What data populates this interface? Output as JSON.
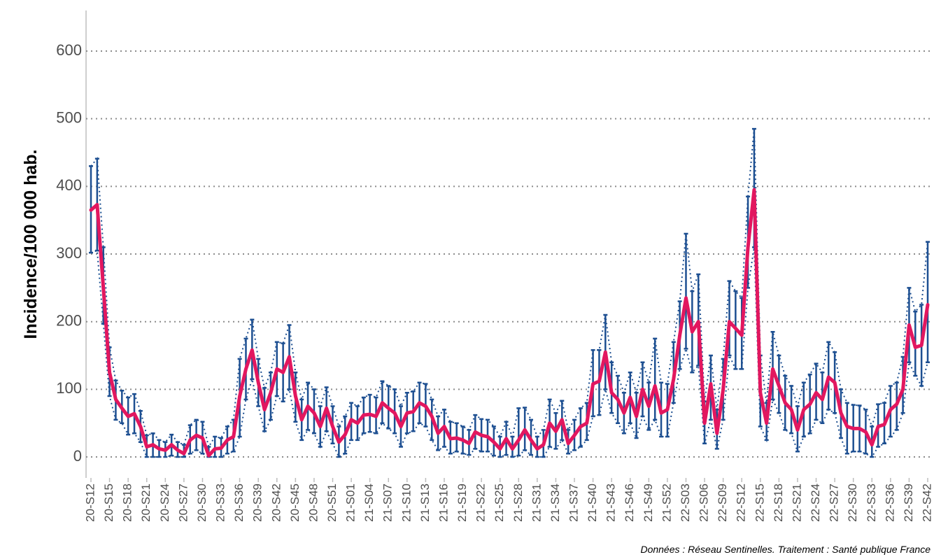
{
  "chart_data": {
    "type": "line-errorbar",
    "y_label": "Incidence/100 000 hab.",
    "note": "Données : Réseau Sentinelles. Traitement : Santé publique France",
    "line_color": "#e2175f",
    "ci_color": "#1d4f91",
    "grid": true,
    "ylim": [
      -31,
      660
    ],
    "yticks": [
      0,
      100,
      200,
      300,
      400,
      500,
      600
    ],
    "categories": [
      "20-S12",
      null,
      null,
      "20-S15",
      null,
      null,
      "20-S18",
      null,
      null,
      "20-S21",
      null,
      null,
      "20-S24",
      null,
      null,
      "20-S27",
      null,
      null,
      "20-S30",
      null,
      null,
      "20-S33",
      null,
      null,
      "20-S36",
      null,
      null,
      "20-S39",
      null,
      null,
      "20-S42",
      null,
      null,
      "20-S45",
      null,
      null,
      "20-S48",
      null,
      null,
      "20-S51",
      null,
      null,
      "21-S01",
      null,
      null,
      "21-S04",
      null,
      null,
      "21-S07",
      null,
      null,
      "21-S10",
      null,
      null,
      "21-S13",
      null,
      null,
      "21-S16",
      null,
      null,
      "21-S19",
      null,
      null,
      "21-S22",
      null,
      null,
      "21-S25",
      null,
      null,
      "21-S28",
      null,
      null,
      "21-S31",
      null,
      null,
      "21-S34",
      null,
      null,
      "21-S37",
      null,
      null,
      "21-S40",
      null,
      null,
      "21-S43",
      null,
      null,
      "21-S46",
      null,
      null,
      "21-S49",
      null,
      null,
      "21-S52",
      null,
      null,
      "22-S03",
      null,
      null,
      "22-S06",
      null,
      null,
      "22-S09",
      null,
      null,
      "22-S12",
      null,
      null,
      "22-S15",
      null,
      null,
      "22-S18",
      null,
      null,
      "22-S21",
      null,
      null,
      "22-S24",
      null,
      null,
      "22-S27",
      null,
      null,
      "22-S30",
      null,
      null,
      "22-S33",
      null,
      null,
      "22-S36",
      null,
      null,
      "22-S39",
      null,
      null,
      "22-S42"
    ],
    "values": [
      365,
      373,
      250,
      125,
      85,
      72,
      60,
      64,
      45,
      15,
      18,
      12,
      10,
      18,
      10,
      5,
      25,
      32,
      28,
      2,
      12,
      13,
      25,
      30,
      90,
      130,
      158,
      110,
      70,
      95,
      130,
      125,
      148,
      90,
      55,
      75,
      65,
      45,
      72,
      45,
      22,
      33,
      55,
      50,
      62,
      63,
      60,
      80,
      72,
      65,
      45,
      65,
      67,
      80,
      75,
      60,
      35,
      45,
      27,
      28,
      25,
      20,
      37,
      32,
      30,
      22,
      12,
      27,
      12,
      25,
      40,
      25,
      12,
      18,
      50,
      38,
      55,
      20,
      32,
      45,
      50,
      108,
      112,
      155,
      95,
      85,
      65,
      88,
      60,
      100,
      75,
      105,
      65,
      70,
      115,
      180,
      235,
      185,
      200,
      50,
      108,
      35,
      100,
      200,
      190,
      180,
      310,
      395,
      95,
      50,
      130,
      105,
      80,
      70,
      40,
      70,
      78,
      95,
      85,
      118,
      110,
      65,
      45,
      42,
      42,
      37,
      18,
      45,
      48,
      70,
      78,
      100,
      195,
      162,
      165,
      225
    ],
    "ci_lower": [
      302,
      305,
      197,
      90,
      55,
      50,
      33,
      35,
      22,
      0,
      0,
      0,
      0,
      2,
      0,
      0,
      5,
      10,
      5,
      0,
      0,
      0,
      5,
      8,
      30,
      85,
      115,
      75,
      38,
      55,
      90,
      82,
      100,
      52,
      25,
      40,
      35,
      15,
      38,
      20,
      0,
      5,
      25,
      25,
      35,
      37,
      35,
      50,
      42,
      35,
      15,
      35,
      38,
      50,
      45,
      25,
      10,
      15,
      5,
      8,
      5,
      3,
      12,
      8,
      8,
      2,
      0,
      3,
      0,
      2,
      10,
      3,
      0,
      0,
      15,
      12,
      25,
      5,
      10,
      15,
      25,
      60,
      62,
      100,
      65,
      50,
      35,
      50,
      28,
      60,
      40,
      55,
      30,
      30,
      80,
      130,
      160,
      125,
      135,
      20,
      55,
      12,
      55,
      150,
      130,
      130,
      250,
      310,
      45,
      25,
      85,
      65,
      40,
      35,
      8,
      30,
      35,
      55,
      50,
      70,
      65,
      28,
      5,
      8,
      8,
      5,
      0,
      15,
      20,
      30,
      40,
      65,
      140,
      120,
      105,
      140
    ],
    "ci_upper": [
      430,
      441,
      310,
      162,
      113,
      98,
      88,
      93,
      68,
      32,
      35,
      25,
      22,
      33,
      22,
      18,
      47,
      55,
      52,
      15,
      30,
      28,
      45,
      55,
      145,
      175,
      203,
      145,
      102,
      125,
      170,
      168,
      195,
      125,
      85,
      110,
      100,
      75,
      103,
      75,
      45,
      60,
      80,
      75,
      88,
      92,
      88,
      112,
      105,
      100,
      75,
      95,
      97,
      110,
      108,
      85,
      60,
      70,
      52,
      50,
      45,
      40,
      62,
      56,
      55,
      45,
      30,
      52,
      30,
      72,
      73,
      55,
      30,
      40,
      85,
      65,
      83,
      40,
      55,
      72,
      80,
      158,
      158,
      210,
      140,
      120,
      95,
      125,
      95,
      140,
      110,
      175,
      110,
      108,
      170,
      230,
      330,
      245,
      270,
      82,
      150,
      70,
      145,
      260,
      245,
      235,
      385,
      485,
      150,
      80,
      185,
      150,
      120,
      105,
      75,
      110,
      122,
      138,
      125,
      170,
      155,
      100,
      80,
      77,
      76,
      70,
      45,
      78,
      80,
      105,
      110,
      148,
      250,
      215,
      225,
      318
    ]
  }
}
